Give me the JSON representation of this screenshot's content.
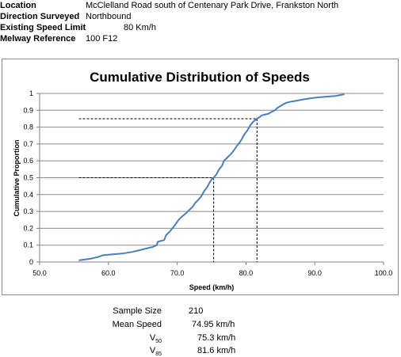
{
  "info": {
    "location_label": "Location",
    "location_value": "McClelland Road south of Centenary Park Drive, Frankston North",
    "direction_label": "Direction Surveyed",
    "direction_value": "Northbound",
    "speed_limit_label": "Existing Speed Limit",
    "speed_limit_value": "80 Km/h",
    "melway_label": "Melway Reference",
    "melway_value": "100 F12"
  },
  "stats": {
    "sample_size_label": "Sample Size",
    "sample_size_value": "210",
    "mean_speed_label": "Mean Speed",
    "mean_speed_value": "74.95 km/h",
    "v50_label_main": "V",
    "v50_label_sub": "50",
    "v50_value": "75.3 km/h",
    "v85_label_main": "V",
    "v85_label_sub": "85",
    "v85_value": "81.6 km/h"
  },
  "chart_data": {
    "type": "line",
    "title": "Cumulative Distribution of Speeds",
    "xlabel": "Speed (km/h)",
    "ylabel": "Cumulative Proportion",
    "xlim": [
      50,
      100
    ],
    "ylim": [
      0,
      1
    ],
    "x_ticks": [
      "50.0",
      "60.0",
      "70.0",
      "80.0",
      "90.0",
      "100.0"
    ],
    "y_ticks": [
      "0",
      "0.1",
      "0.2",
      "0.3",
      "0.4",
      "0.5",
      "0.6",
      "0.7",
      "0.8",
      "0.9",
      "1"
    ],
    "grid": true,
    "line_color": "#4a7ebb",
    "series": [
      {
        "x": [
          55.7,
          57.5,
          58.5,
          59.2,
          60.5,
          62,
          63.5,
          64.5,
          65.5,
          66.5,
          67,
          67.2,
          68.1,
          68.4,
          68.9,
          69.3,
          69.7,
          70.2,
          70.7,
          71.3,
          71.8,
          72.3,
          72.6,
          73.1,
          73.5,
          73.9,
          74.3,
          74.7,
          75,
          75.3,
          75.7,
          76.1,
          76.5,
          76.8,
          77.3,
          77.8,
          78.2,
          78.7,
          79.1,
          79.4,
          79.8,
          80.2,
          80.6,
          81,
          81.6,
          82,
          82.3,
          82.8,
          83.3,
          83.7,
          84.2,
          84.6,
          85,
          85.4,
          85.9,
          86.4,
          87.1,
          87.8,
          88.4,
          89.2,
          90.2,
          91.5,
          93,
          94.3
        ],
        "y": [
          0.01,
          0.02,
          0.03,
          0.04,
          0.045,
          0.05,
          0.06,
          0.07,
          0.08,
          0.09,
          0.1,
          0.12,
          0.13,
          0.16,
          0.18,
          0.2,
          0.22,
          0.25,
          0.27,
          0.29,
          0.31,
          0.33,
          0.35,
          0.37,
          0.39,
          0.42,
          0.44,
          0.47,
          0.49,
          0.5,
          0.52,
          0.55,
          0.57,
          0.6,
          0.62,
          0.64,
          0.66,
          0.69,
          0.71,
          0.73,
          0.76,
          0.78,
          0.81,
          0.83,
          0.85,
          0.86,
          0.87,
          0.875,
          0.88,
          0.89,
          0.9,
          0.915,
          0.925,
          0.935,
          0.945,
          0.95,
          0.955,
          0.96,
          0.965,
          0.97,
          0.975,
          0.98,
          0.985,
          0.995
        ]
      }
    ],
    "reference_lines": [
      {
        "y": 0.5,
        "x": 75.3
      },
      {
        "y": 0.85,
        "x": 81.6
      }
    ]
  }
}
